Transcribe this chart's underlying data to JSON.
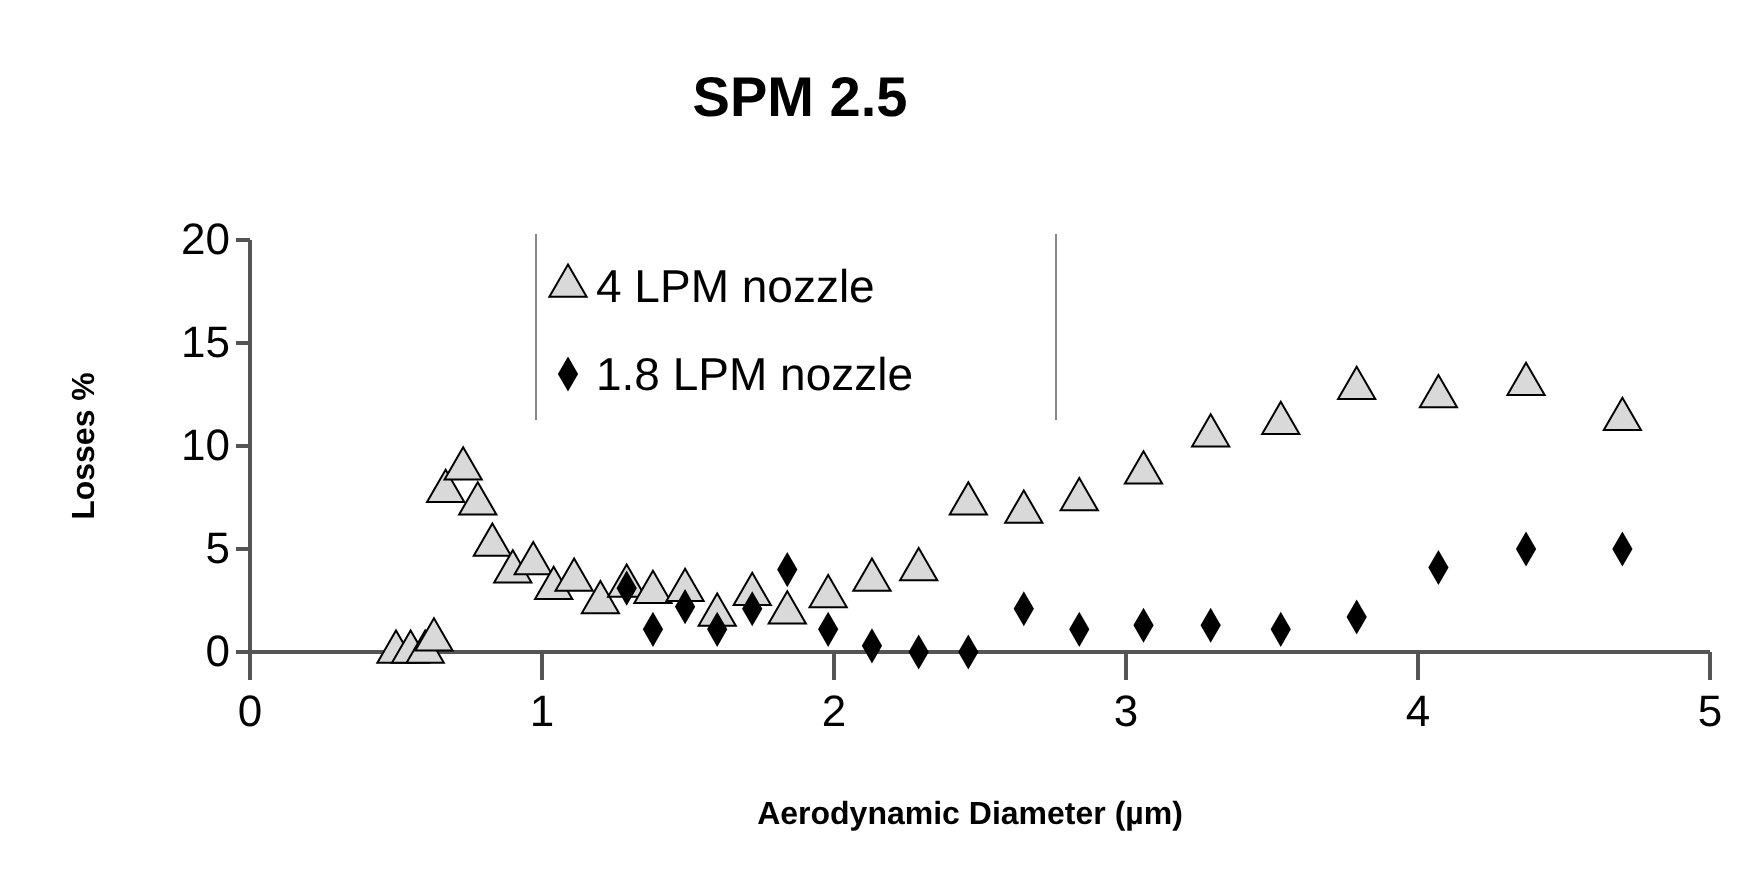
{
  "chart_data": {
    "type": "scatter",
    "title": "SPM 2.5",
    "xlabel": "Aerodynamic Diameter (µm)",
    "ylabel": "Losses %",
    "xlim": [
      0,
      5
    ],
    "xticks": [
      0,
      1,
      2,
      3,
      4,
      5
    ],
    "ylim": [
      0,
      20
    ],
    "yticks": [
      0,
      5,
      10,
      15,
      20
    ],
    "grid": false,
    "legend": "top",
    "series": [
      {
        "name": "4 LPM nozzle",
        "color": "#d9d9d9",
        "marker": "triangle",
        "x": [
          0.5,
          0.55,
          0.6,
          0.63,
          0.67,
          0.73,
          0.78,
          0.83,
          0.9,
          0.97,
          1.04,
          1.11,
          1.2,
          1.29,
          1.38,
          1.49,
          1.6,
          1.72,
          1.84,
          1.98,
          2.13,
          2.29,
          2.46,
          2.65,
          2.84,
          3.06,
          3.29,
          3.53,
          3.79,
          4.07,
          4.37,
          4.7
        ],
        "values": [
          0,
          0,
          0,
          0.6,
          7.8,
          8.9,
          7.2,
          5.2,
          3.9,
          4.3,
          3.1,
          3.5,
          2.4,
          3.2,
          2.9,
          3.0,
          1.8,
          2.8,
          1.9,
          2.7,
          3.5,
          4.0,
          7.2,
          6.8,
          7.4,
          8.7,
          10.5,
          11.1,
          12.8,
          12.4,
          13.0,
          11.3
        ]
      },
      {
        "name": "1.8 LPM nozzle",
        "color": "#000000",
        "marker": "diamond",
        "x": [
          1.29,
          1.38,
          1.49,
          1.6,
          1.72,
          1.84,
          1.98,
          2.13,
          2.29,
          2.46,
          2.65,
          2.84,
          3.06,
          3.29,
          3.53,
          3.79,
          4.07,
          4.37,
          4.7
        ],
        "values": [
          3.1,
          1.1,
          2.2,
          1.1,
          2.1,
          4.0,
          1.1,
          0.3,
          0,
          0,
          2.1,
          1.1,
          1.3,
          1.3,
          1.1,
          1.7,
          4.1,
          5.0,
          5.0
        ]
      }
    ]
  }
}
